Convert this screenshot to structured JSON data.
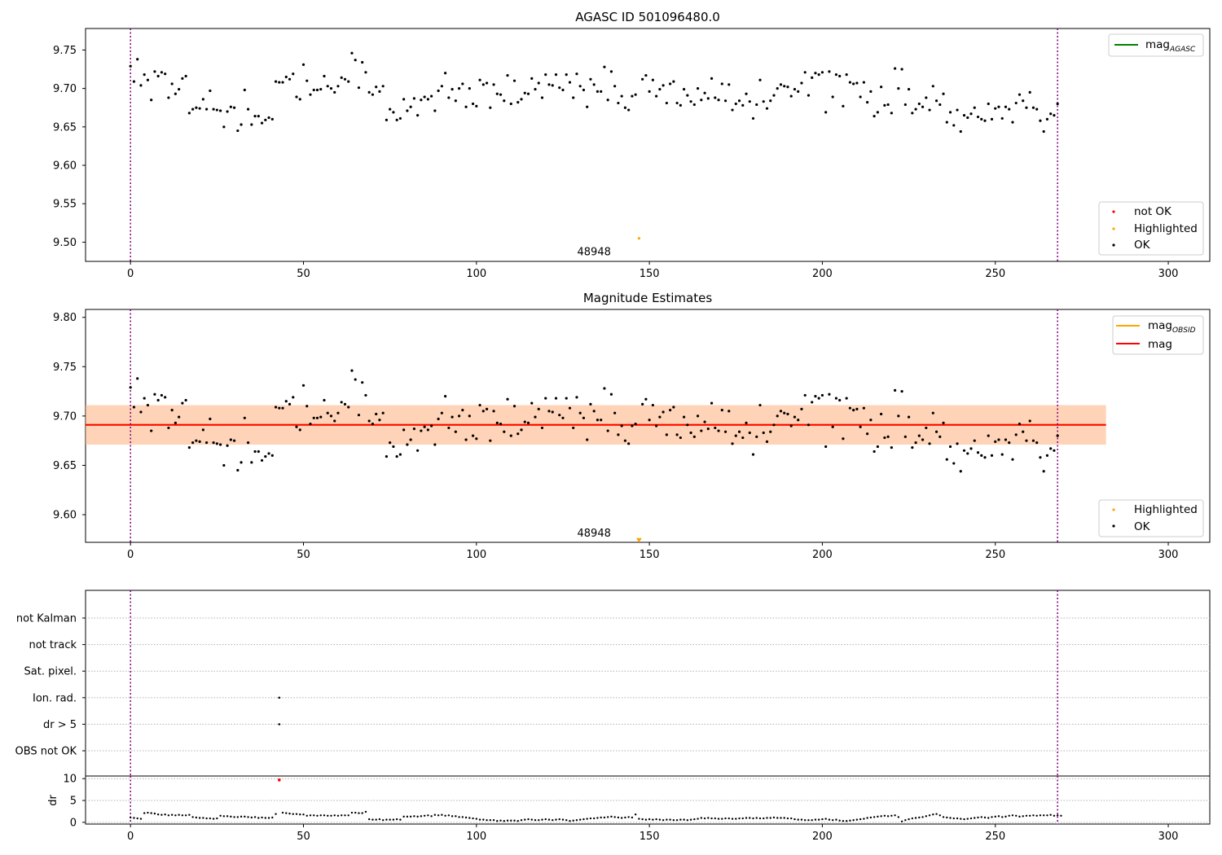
{
  "chart_data": [
    {
      "type": "scatter",
      "title": "AGASC ID 501096480.0",
      "xlim": [
        -13,
        312
      ],
      "ylim": [
        9.475,
        9.778
      ],
      "xticks": [
        "0",
        "50",
        "100",
        "150",
        "200",
        "250",
        "300"
      ],
      "yticks": [
        "9.50",
        "9.55",
        "9.60",
        "9.65",
        "9.70",
        "9.75"
      ],
      "vlines": [
        0,
        268
      ],
      "legend_upper": {
        "placement": "upper-right",
        "entries": [
          "mag",
          "AGASC"
        ]
      },
      "legend_lower": {
        "placement": "lower-right",
        "entries": [
          "not OK",
          "Highlighted",
          "OK"
        ]
      },
      "highlighted": {
        "x": 147,
        "y": 9.505
      },
      "annotation": {
        "text": "48948",
        "x": 134,
        "y": 9.487
      },
      "series_mag": [
        9.729,
        9.709,
        9.738,
        9.704,
        9.718,
        9.711,
        9.685,
        9.722,
        9.716,
        9.721,
        9.719,
        9.688,
        9.706,
        9.693,
        9.699,
        9.713,
        9.716,
        9.668,
        9.673,
        9.675,
        9.674,
        9.686,
        9.673,
        9.697,
        9.673,
        9.672,
        9.671,
        9.65,
        9.67,
        9.676,
        9.675,
        9.645,
        9.653,
        9.698,
        9.673,
        9.653,
        9.664,
        9.664,
        9.655,
        9.659,
        9.662,
        9.66,
        9.709,
        9.708,
        9.708,
        9.715,
        9.712,
        9.719,
        9.689,
        9.686,
        9.731,
        9.71,
        9.692,
        9.698,
        9.698,
        9.699,
        9.716,
        9.703,
        9.7,
        9.695,
        9.703,
        9.714,
        9.712,
        9.709,
        9.746,
        9.737,
        9.701,
        9.734,
        9.721,
        9.695,
        9.692,
        9.702,
        9.696,
        9.703,
        9.659,
        9.673,
        9.669,
        9.659,
        9.661,
        9.686,
        9.671,
        9.676,
        9.687,
        9.665,
        9.685,
        9.689,
        9.686,
        9.69,
        9.671,
        9.697,
        9.703,
        9.72,
        9.688,
        9.699,
        9.684,
        9.7,
        9.706,
        9.676,
        9.7,
        9.68,
        9.677,
        9.711,
        9.705,
        9.707,
        9.675,
        9.705,
        9.693,
        9.692,
        9.684,
        9.717,
        9.68,
        9.71,
        9.682,
        9.686,
        9.694,
        9.693,
        9.713,
        9.699,
        9.707,
        9.688,
        9.718,
        9.705,
        9.704,
        9.718,
        9.701,
        9.698,
        9.718,
        9.708,
        9.688,
        9.719,
        9.703,
        9.698,
        9.676,
        9.712,
        9.705,
        9.696,
        9.696,
        9.728,
        9.685,
        9.722,
        9.703,
        9.681,
        9.69,
        9.675,
        9.672,
        9.69,
        9.692,
        9.505,
        9.712,
        9.717,
        9.696,
        9.711,
        9.69,
        9.699,
        9.704,
        9.681,
        9.706,
        9.709,
        9.681,
        9.678,
        9.699,
        9.691,
        9.683,
        9.679,
        9.7,
        9.685,
        9.694,
        9.687,
        9.713,
        9.688,
        9.685,
        9.706,
        9.684,
        9.705,
        9.672,
        9.68,
        9.684,
        9.678,
        9.693,
        9.683,
        9.661,
        9.679,
        9.711,
        9.683,
        9.674,
        9.684,
        9.691,
        9.7,
        9.705,
        9.703,
        9.702,
        9.69,
        9.699,
        9.696,
        9.707,
        9.721,
        9.691,
        9.714,
        9.72,
        9.718,
        9.721,
        9.669,
        9.722,
        9.689,
        9.718,
        9.716,
        9.677,
        9.718,
        9.708,
        9.706,
        9.707,
        9.689,
        9.708,
        9.682,
        9.696,
        9.664,
        9.669,
        9.702,
        9.678,
        9.679,
        9.668,
        9.726,
        9.7,
        9.725,
        9.679,
        9.699,
        9.668,
        9.673,
        9.68,
        9.676,
        9.688,
        9.672,
        9.703,
        9.684,
        9.679,
        9.693,
        9.656,
        9.669,
        9.652,
        9.672,
        9.644,
        9.665,
        9.662,
        9.667,
        9.675,
        9.663,
        9.66,
        9.658,
        9.68,
        9.66,
        9.674,
        9.676,
        9.661,
        9.676,
        9.673,
        9.656,
        9.681,
        9.692,
        9.684,
        9.675,
        9.695,
        9.675,
        9.673,
        9.658,
        9.644,
        9.66,
        9.667,
        9.665,
        9.68
      ]
    },
    {
      "type": "scatter",
      "title": "Magnitude Estimates",
      "xlim": [
        -13,
        312
      ],
      "ylim": [
        9.572,
        9.808
      ],
      "xticks": [
        "0",
        "50",
        "100",
        "150",
        "200",
        "250",
        "300"
      ],
      "yticks": [
        "9.60",
        "9.65",
        "9.70",
        "9.75",
        "9.80"
      ],
      "vlines": [
        0,
        268
      ],
      "mean_mag": 9.691,
      "band_outer": [
        9.671,
        9.711
      ],
      "band_inner": [
        9.671,
        9.711
      ],
      "band_x": [
        -13,
        282
      ],
      "legend_upper": {
        "placement": "upper-right",
        "entries": [
          "mag",
          "OBSID",
          "mag"
        ]
      },
      "legend_lower": {
        "placement": "lower-right",
        "entries": [
          "Highlighted",
          "OK"
        ]
      },
      "highlighted": {
        "x": 147,
        "y": 9.573,
        "marker": "down-triangle"
      },
      "annotation": {
        "text": "48948",
        "x": 134,
        "y": 9.581
      }
    },
    {
      "type": "scatter",
      "xlim": [
        -13,
        312
      ],
      "yticks_labels": [
        "not Kalman",
        "not track",
        "Sat. pixel.",
        "Ion. rad.",
        "dr > 5",
        "OBS not OK"
      ],
      "flag_points": [
        {
          "flag": "Ion. rad.",
          "x": 43
        },
        {
          "flag": "dr > 5",
          "x": 43
        }
      ],
      "vlines": [
        0,
        268
      ]
    },
    {
      "type": "scatter",
      "ylabel": "dr",
      "xlim": [
        -13,
        312
      ],
      "ylim": [
        -0.4,
        10.6
      ],
      "xticks": [
        "0",
        "50",
        "100",
        "150",
        "200",
        "250",
        "300"
      ],
      "yticks": [
        "0",
        "5",
        "10"
      ],
      "vlines": [
        0,
        268
      ],
      "outlier": {
        "x": 43,
        "y": 9.7
      },
      "series_dr": [
        1.1,
        1.0,
        0.9,
        0.8,
        2.1,
        2.2,
        2.1,
        2.0,
        1.8,
        1.7,
        1.8,
        1.6,
        1.7,
        1.6,
        1.7,
        1.6,
        1.6,
        1.7,
        1.2,
        1.1,
        1.0,
        1.0,
        0.9,
        0.9,
        0.8,
        0.9,
        1.5,
        1.4,
        1.4,
        1.3,
        1.2,
        1.2,
        1.3,
        1.3,
        1.2,
        1.1,
        1.2,
        1.0,
        1.1,
        1.0,
        1.0,
        1.1,
        1.9,
        9.7,
        2.2,
        2.1,
        2.0,
        1.9,
        1.9,
        1.8,
        1.8,
        1.5,
        1.6,
        1.6,
        1.5,
        1.6,
        1.6,
        1.5,
        1.5,
        1.6,
        1.5,
        1.6,
        1.6,
        1.6,
        2.2,
        2.2,
        2.1,
        2.1,
        2.4,
        0.7,
        0.6,
        0.6,
        0.7,
        0.5,
        0.6,
        0.6,
        0.6,
        0.7,
        0.6,
        1.3,
        1.3,
        1.3,
        1.4,
        1.3,
        1.4,
        1.5,
        1.6,
        1.4,
        1.7,
        1.6,
        1.7,
        1.5,
        1.6,
        1.4,
        1.4,
        1.2,
        1.2,
        1.1,
        1.0,
        0.9,
        0.8,
        0.6,
        0.6,
        0.5,
        0.5,
        0.5,
        0.3,
        0.4,
        0.3,
        0.4,
        0.4,
        0.4,
        0.3,
        0.5,
        0.6,
        0.7,
        0.6,
        0.5,
        0.5,
        0.6,
        0.7,
        0.6,
        0.5,
        0.6,
        0.7,
        0.6,
        0.5,
        0.3,
        0.4,
        0.5,
        0.6,
        0.7,
        0.8,
        0.9,
        0.9,
        1.0,
        1.1,
        1.1,
        1.2,
        1.3,
        1.2,
        1.1,
        1.0,
        1.1,
        1.2,
        1.1,
        1.8,
        0.8,
        0.7,
        0.6,
        0.7,
        0.6,
        0.7,
        0.6,
        0.5,
        0.6,
        0.6,
        0.5,
        0.5,
        0.6,
        0.6,
        0.5,
        0.6,
        0.7,
        0.8,
        1.0,
        0.9,
        1.0,
        0.9,
        0.9,
        0.8,
        0.8,
        0.9,
        0.9,
        0.8,
        0.8,
        0.9,
        0.9,
        1.0,
        1.0,
        0.9,
        1.0,
        0.9,
        0.9,
        1.0,
        1.0,
        1.1,
        1.0,
        1.0,
        1.0,
        0.9,
        0.9,
        0.7,
        0.6,
        0.6,
        0.5,
        0.5,
        0.5,
        0.6,
        0.6,
        0.7,
        0.8,
        0.6,
        0.5,
        0.6,
        0.4,
        0.3,
        0.3,
        0.4,
        0.5,
        0.6,
        0.7,
        0.8,
        1.0,
        1.1,
        1.2,
        1.3,
        1.4,
        1.5,
        1.4,
        1.5,
        1.6,
        1.2,
        0.2,
        0.5,
        0.7,
        0.9,
        1.0,
        1.1,
        1.2,
        1.4,
        1.6,
        1.8,
        1.9,
        1.6,
        1.2,
        1.1,
        1.0,
        0.9,
        0.9,
        0.8,
        0.7,
        0.8,
        0.9,
        1.0,
        1.1,
        1.2,
        1.1,
        1.0,
        1.2,
        1.3,
        1.4,
        1.2,
        1.3,
        1.5,
        1.6,
        1.5,
        1.3,
        1.4,
        1.5,
        1.5,
        1.6,
        1.5,
        1.6,
        1.6,
        1.6,
        1.7,
        1.5,
        1.6,
        1.5
      ]
    }
  ]
}
